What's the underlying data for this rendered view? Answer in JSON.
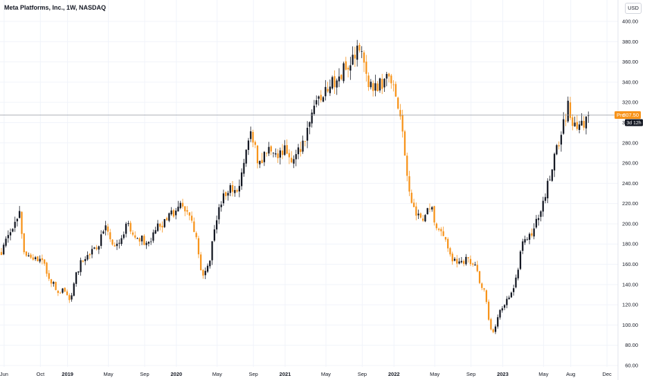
{
  "header": {
    "title": "Meta Platforms, Inc., 1W, NASDAQ",
    "currency": "USD"
  },
  "price_badge": {
    "label": "Pre",
    "value": "307.50",
    "countdown": "3d 12h"
  },
  "colors": {
    "up": "#131722",
    "down": "#f7931a",
    "grid": "#f0f3fa",
    "axis_text": "#131722",
    "price_line": "#9598a1",
    "badge_bg": "#f7931a",
    "countdown_bg": "#131722"
  },
  "chart_data": {
    "type": "candlestick",
    "timeframe": "1W",
    "ylim": [
      60,
      410
    ],
    "y_ticks": [
      "400.00",
      "380.00",
      "360.00",
      "340.00",
      "320.00",
      "300.00",
      "280.00",
      "260.00",
      "240.00",
      "220.00",
      "200.00",
      "180.00",
      "160.00",
      "140.00",
      "120.00",
      "100.00",
      "80.00",
      "60.00"
    ],
    "x_ticks": [
      {
        "label": "Jun",
        "t": 0.3
      },
      {
        "label": "Oct",
        "t": 4.3
      },
      {
        "label": "2019",
        "t": 7.3
      },
      {
        "label": "May",
        "t": 11.8
      },
      {
        "label": "Sep",
        "t": 15.8
      },
      {
        "label": "2020",
        "t": 19.3
      },
      {
        "label": "May",
        "t": 23.8
      },
      {
        "label": "Sep",
        "t": 27.8
      },
      {
        "label": "2021",
        "t": 31.3
      },
      {
        "label": "May",
        "t": 35.8
      },
      {
        "label": "Sep",
        "t": 39.8
      },
      {
        "label": "2022",
        "t": 43.3
      },
      {
        "label": "May",
        "t": 47.8
      },
      {
        "label": "Sep",
        "t": 51.8
      },
      {
        "label": "2023",
        "t": 55.3
      },
      {
        "label": "May",
        "t": 59.8
      },
      {
        "label": "Aug",
        "t": 62.8
      },
      {
        "label": "Dec",
        "t": 66.8
      }
    ],
    "current_price": 307.5,
    "anchors": [
      [
        0.0,
        172
      ],
      [
        0.8,
        188
      ],
      [
        2.0,
        212
      ],
      [
        2.5,
        172
      ],
      [
        3.3,
        166
      ],
      [
        4.5,
        162
      ],
      [
        5.5,
        144
      ],
      [
        6.3,
        132
      ],
      [
        7.0,
        136
      ],
      [
        7.6,
        124
      ],
      [
        8.2,
        148
      ],
      [
        9.0,
        166
      ],
      [
        9.8,
        172
      ],
      [
        10.6,
        178
      ],
      [
        11.5,
        195
      ],
      [
        12.3,
        178
      ],
      [
        13.0,
        182
      ],
      [
        14.0,
        200
      ],
      [
        14.8,
        184
      ],
      [
        15.5,
        185
      ],
      [
        16.3,
        180
      ],
      [
        17.2,
        196
      ],
      [
        18.0,
        200
      ],
      [
        18.8,
        210
      ],
      [
        19.6,
        218
      ],
      [
        20.3,
        216
      ],
      [
        21.0,
        204
      ],
      [
        21.6,
        180
      ],
      [
        22.0,
        155
      ],
      [
        22.4,
        148
      ],
      [
        23.0,
        165
      ],
      [
        23.8,
        210
      ],
      [
        24.5,
        230
      ],
      [
        25.3,
        236
      ],
      [
        26.0,
        232
      ],
      [
        26.8,
        260
      ],
      [
        27.6,
        292
      ],
      [
        28.2,
        262
      ],
      [
        29.0,
        266
      ],
      [
        29.8,
        278
      ],
      [
        30.5,
        268
      ],
      [
        31.2,
        274
      ],
      [
        32.0,
        264
      ],
      [
        32.8,
        270
      ],
      [
        33.6,
        284
      ],
      [
        34.3,
        312
      ],
      [
        35.0,
        322
      ],
      [
        35.8,
        328
      ],
      [
        36.6,
        340
      ],
      [
        37.4,
        350
      ],
      [
        38.2,
        358
      ],
      [
        39.0,
        368
      ],
      [
        39.6,
        376
      ],
      [
        40.2,
        350
      ],
      [
        40.8,
        332
      ],
      [
        41.6,
        338
      ],
      [
        42.4,
        342
      ],
      [
        43.0,
        335
      ],
      [
        43.6,
        322
      ],
      [
        44.1,
        305
      ],
      [
        44.6,
        252
      ],
      [
        45.2,
        225
      ],
      [
        45.8,
        208
      ],
      [
        46.6,
        200
      ],
      [
        47.3,
        220
      ],
      [
        48.0,
        196
      ],
      [
        48.8,
        188
      ],
      [
        49.6,
        165
      ],
      [
        50.4,
        162
      ],
      [
        51.2,
        165
      ],
      [
        52.0,
        163
      ],
      [
        52.7,
        146
      ],
      [
        53.3,
        132
      ],
      [
        53.9,
        98
      ],
      [
        54.3,
        93
      ],
      [
        54.8,
        112
      ],
      [
        55.4,
        120
      ],
      [
        56.0,
        126
      ],
      [
        56.8,
        145
      ],
      [
        57.4,
        180
      ],
      [
        58.0,
        182
      ],
      [
        58.8,
        195
      ],
      [
        59.5,
        215
      ],
      [
        60.2,
        236
      ],
      [
        61.0,
        264
      ],
      [
        61.6,
        286
      ],
      [
        62.1,
        300
      ],
      [
        62.6,
        318
      ],
      [
        63.0,
        302
      ],
      [
        63.4,
        288
      ],
      [
        63.9,
        295
      ],
      [
        64.4,
        303
      ],
      [
        64.8,
        307.5
      ]
    ]
  }
}
